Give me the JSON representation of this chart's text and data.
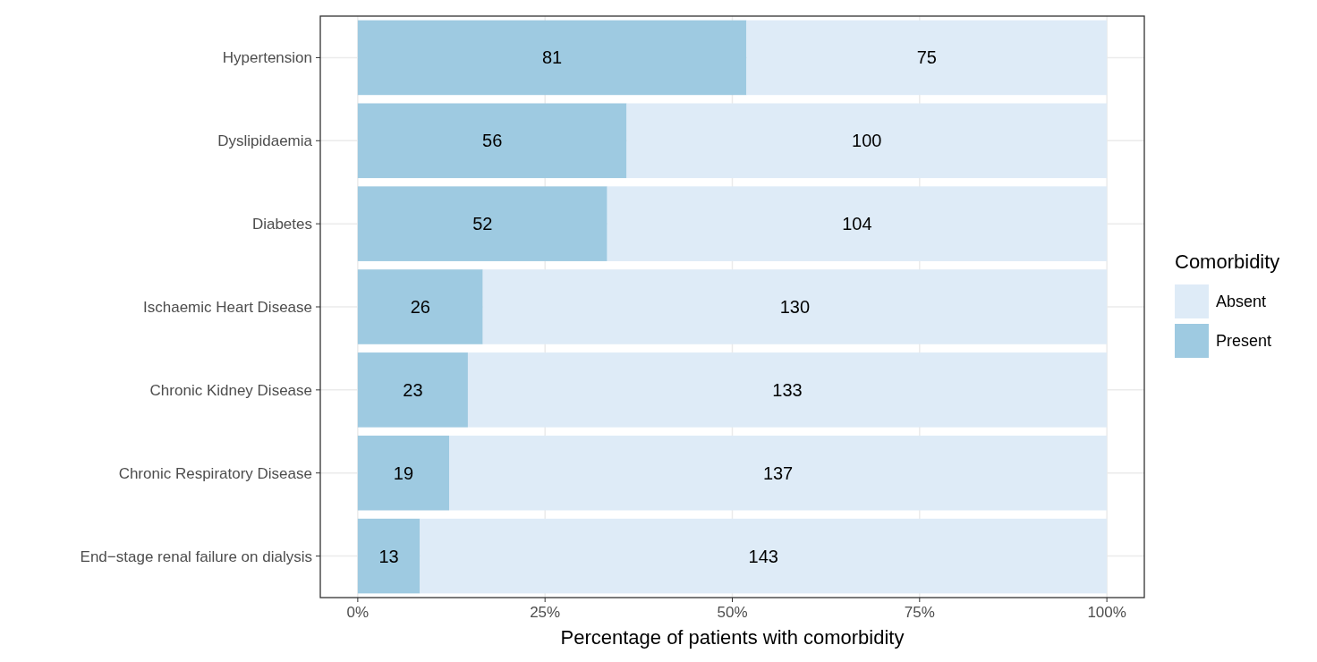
{
  "chart_data": {
    "type": "bar",
    "orientation": "horizontal",
    "stacked": true,
    "xlabel": "Percentage of patients with comorbidity",
    "legend_title": "Comorbidity",
    "categories": [
      "Hypertension",
      "Dyslipidaemia",
      "Diabetes",
      "Ischaemic Heart Disease",
      "Chronic Kidney Disease",
      "Chronic Respiratory Disease",
      "End−stage renal failure on dialysis"
    ],
    "series": [
      {
        "name": "Present",
        "color": "#9ecae1",
        "values": [
          51.9,
          35.9,
          33.3,
          16.7,
          14.7,
          12.2,
          8.3
        ]
      },
      {
        "name": "Absent",
        "color": "#deebf7",
        "values": [
          48.1,
          64.1,
          66.7,
          83.3,
          85.3,
          87.8,
          91.7
        ]
      }
    ],
    "annotations": [
      {
        "text": "81",
        "x": 25.95,
        "y": "Hypertension"
      },
      {
        "text": "56",
        "x": 17.95,
        "y": "Dyslipidaemia"
      },
      {
        "text": "52",
        "x": 16.65,
        "y": "Diabetes"
      },
      {
        "text": "26",
        "x": 8.35,
        "y": "Ischaemic Heart Disease"
      },
      {
        "text": "23",
        "x": 7.35,
        "y": "Chronic Kidney Disease"
      },
      {
        "text": "19",
        "x": 6.1,
        "y": "Chronic Respiratory Disease"
      },
      {
        "text": "13",
        "x": 4.15,
        "y": "End−stage renal failure on dialysis"
      },
      {
        "text": "75",
        "x": 75.95,
        "y": "Hypertension"
      },
      {
        "text": "100",
        "x": 67.95,
        "y": "Dyslipidaemia"
      },
      {
        "text": "104",
        "x": 66.65,
        "y": "Diabetes"
      },
      {
        "text": "130",
        "x": 58.35,
        "y": "Ischaemic Heart Disease"
      },
      {
        "text": "133",
        "x": 57.35,
        "y": "Chronic Kidney Disease"
      },
      {
        "text": "137",
        "x": 56.1,
        "y": "Chronic Respiratory Disease"
      },
      {
        "text": "143",
        "x": 54.15,
        "y": "End−stage renal failure on dialysis"
      }
    ],
    "xlim": [
      -5,
      105
    ],
    "xticks": [
      {
        "value": 0,
        "label": "0%"
      },
      {
        "value": 25,
        "label": "25%"
      },
      {
        "value": 50,
        "label": "50%"
      },
      {
        "value": 75,
        "label": "75%"
      },
      {
        "value": 100,
        "label": "100%"
      }
    ],
    "grid": true,
    "legend": "right"
  }
}
